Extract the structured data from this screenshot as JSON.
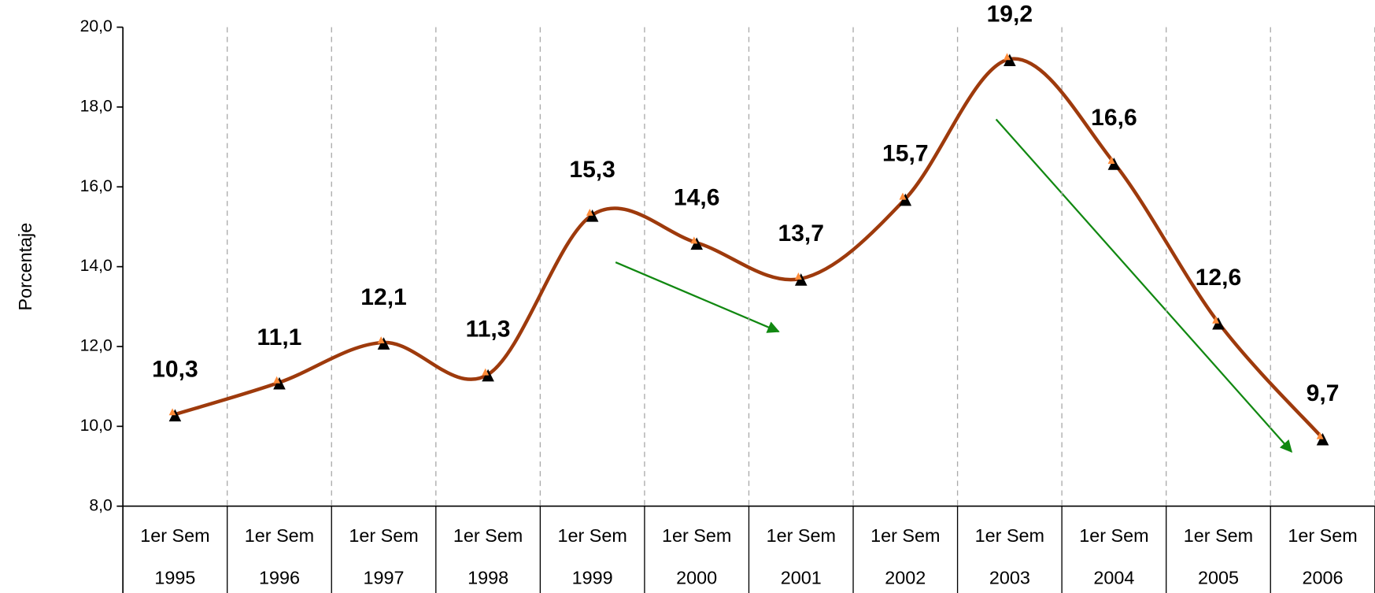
{
  "chart_data": {
    "type": "line",
    "ylabel": "Porcentaje",
    "categories": [
      [
        "1er Sem",
        "1995"
      ],
      [
        "1er Sem",
        "1996"
      ],
      [
        "1er Sem",
        "1997"
      ],
      [
        "1er Sem",
        "1998"
      ],
      [
        "1er Sem",
        "1999"
      ],
      [
        "1er Sem",
        "2000"
      ],
      [
        "1er Sem",
        "2001"
      ],
      [
        "1er Sem",
        "2002"
      ],
      [
        "1er Sem",
        "2003"
      ],
      [
        "1er Sem",
        "2004"
      ],
      [
        "1er Sem",
        "2005"
      ],
      [
        "1er Sem",
        "2006"
      ]
    ],
    "values": [
      10.3,
      11.1,
      12.1,
      11.3,
      15.3,
      14.6,
      13.7,
      15.7,
      19.2,
      16.6,
      12.6,
      9.7
    ],
    "value_labels": [
      "10,3",
      "11,1",
      "12,1",
      "11,3",
      "15,3",
      "14,6",
      "13,7",
      "15,7",
      "19,2",
      "16,6",
      "12,6",
      "9,7"
    ],
    "color": "#9e3a0c",
    "ylim": [
      8,
      20
    ],
    "yticks": [
      {
        "value": 8,
        "label": "8,0"
      },
      {
        "value": 10,
        "label": "10,0"
      },
      {
        "value": 12,
        "label": "12,0"
      },
      {
        "value": 14,
        "label": "14,0"
      },
      {
        "value": 16,
        "label": "16,0"
      },
      {
        "value": 18,
        "label": "18,0"
      },
      {
        "value": 20,
        "label": "20,0"
      }
    ]
  }
}
